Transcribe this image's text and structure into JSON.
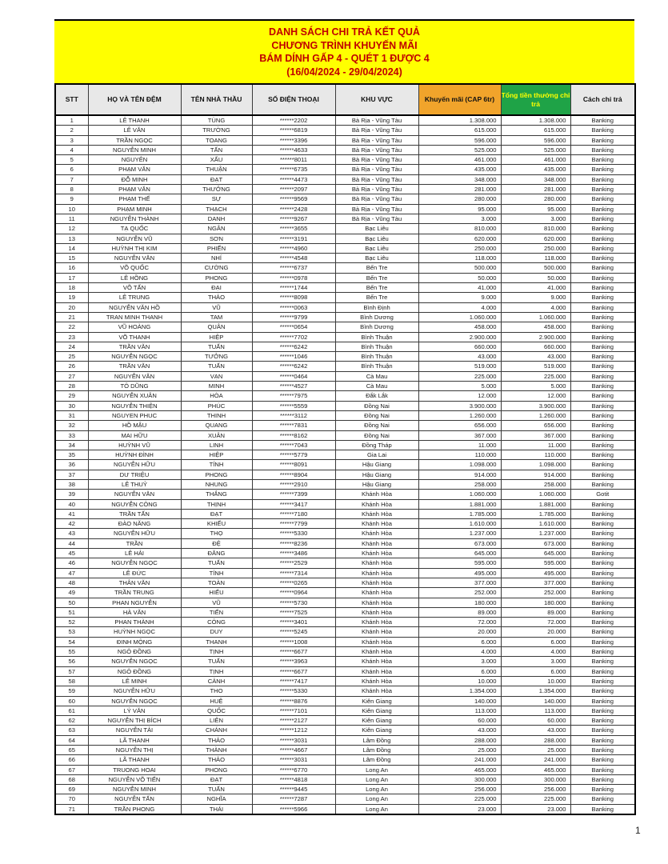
{
  "title": {
    "lines": [
      "DANH SÁCH CHI TRẢ KẾT QUẢ",
      "CHƯƠNG TRÌNH KHUYẾN MÃI",
      "BÁM DÍNH GẤP 4 - QUÉT 1 ĐƯỢC 4",
      "(16/04/2024 - 29/04/2024)"
    ]
  },
  "colors": {
    "banner_bg": "#FFFF00",
    "title_text": "#C00000",
    "header_gray": "#E8E8E8",
    "promo_header_bg": "#F1A42B",
    "total_header_bg": "#1FA347",
    "total_header_text": "#FFFF00"
  },
  "table": {
    "headers": [
      {
        "label": "STT"
      },
      {
        "label": "HỌ VÀ TÊN ĐỆM"
      },
      {
        "label": "TÊN NHÀ THẦU"
      },
      {
        "label": "SỐ ĐIỆN THOẠI"
      },
      {
        "label": "KHU VỰC"
      },
      {
        "label": "Khuyến mãi (CAP 6tr)"
      },
      {
        "label": "Tổng tiền thưởng chi trả"
      },
      {
        "label": "Cách chi trả"
      }
    ],
    "rows": [
      [
        "1",
        "LÊ THANH",
        "TÙNG",
        "******2202",
        "Bà Rịa - Vũng Tàu",
        "1.308.000",
        "1.308.000",
        "Banking"
      ],
      [
        "2",
        "LÊ VĂN",
        "TRƯỜNG",
        "******6819",
        "Bà Rịa - Vũng Tàu",
        "615.000",
        "615.000",
        "Banking"
      ],
      [
        "3",
        "TRẦN NGỌC",
        "TOANG",
        "******3396",
        "Bà Rịa - Vũng Tàu",
        "596.000",
        "596.000",
        "Banking"
      ],
      [
        "4",
        "NGUYỄN MINH",
        "TẤN",
        "******4633",
        "Bà Rịa - Vũng Tàu",
        "525.000",
        "525.000",
        "Banking"
      ],
      [
        "5",
        "NGUYÊN",
        "XẤU",
        "******8011",
        "Bà Rịa - Vũng Tàu",
        "461.000",
        "461.000",
        "Banking"
      ],
      [
        "6",
        "PHẠM VĂN",
        "THUẬN",
        "******6735",
        "Bà Rịa - Vũng Tàu",
        "435.000",
        "435.000",
        "Banking"
      ],
      [
        "7",
        "ĐỖ MINH",
        "ĐẠT",
        "******4473",
        "Bà Rịa - Vũng Tàu",
        "348.000",
        "348.000",
        "Banking"
      ],
      [
        "8",
        "PHẠM VĂN",
        "THƯỞNG",
        "******2097",
        "Bà Rịa - Vũng Tàu",
        "281.000",
        "281.000",
        "Banking"
      ],
      [
        "9",
        "PHẠM THẾ",
        "SỰ",
        "******9569",
        "Bà Rịa - Vũng Tàu",
        "280.000",
        "280.000",
        "Banking"
      ],
      [
        "10",
        "PHẠM MINH",
        "THẠCH",
        "******2428",
        "Bà Rịa - Vũng Tàu",
        "95.000",
        "95.000",
        "Banking"
      ],
      [
        "11",
        "NGUYỄN THÀNH",
        "DANH",
        "******9267",
        "Bà Rịa - Vũng Tàu",
        "3.000",
        "3.000",
        "Banking"
      ],
      [
        "12",
        "TẠ QUỐC",
        "NGÂN",
        "******3655",
        "Bạc Liêu",
        "810.000",
        "810.000",
        "Banking"
      ],
      [
        "13",
        "NGUYỄN VŨ",
        "SƠN",
        "******3191",
        "Bạc Liêu",
        "620.000",
        "620.000",
        "Banking"
      ],
      [
        "14",
        "HUỲNH THỊ KIM",
        "PHIẾN",
        "******4960",
        "Bạc Liêu",
        "250.000",
        "250.000",
        "Banking"
      ],
      [
        "15",
        "NGUYỄN VĂN",
        "NHÍ",
        "******4548",
        "Bạc Liêu",
        "118.000",
        "118.000",
        "Banking"
      ],
      [
        "16",
        "VÕ QUỐC",
        "CƯỜNG",
        "******6737",
        "Bến Tre",
        "500.000",
        "500.000",
        "Banking"
      ],
      [
        "17",
        "LÊ HỒNG",
        "PHONG",
        "******0978",
        "Bến Tre",
        "50.000",
        "50.000",
        "Banking"
      ],
      [
        "18",
        "VÕ TẤN",
        "ĐẠI",
        "******1744",
        "Bến Tre",
        "41.000",
        "41.000",
        "Banking"
      ],
      [
        "19",
        "LÊ TRUNG",
        "THẢO",
        "******8098",
        "Bến Tre",
        "9.000",
        "9.000",
        "Banking"
      ],
      [
        "20",
        "NGUYỄN VĂN HỒ",
        "VŨ",
        "******0063",
        "Bình Định",
        "4.000",
        "4.000",
        "Banking"
      ],
      [
        "21",
        "TRAN MINH THANH",
        "TAM",
        "******9799",
        "Bình Dương",
        "1.060.000",
        "1.060.000",
        "Banking"
      ],
      [
        "22",
        "VŨ HOÀNG",
        "QUÂN",
        "******0654",
        "Bình Dương",
        "458.000",
        "458.000",
        "Banking"
      ],
      [
        "23",
        "VÕ THANH",
        "HIỆP",
        "******7702",
        "Bình Thuận",
        "2.900.000",
        "2.900.000",
        "Banking"
      ],
      [
        "24",
        "TRẦN VĂN",
        "TUẤN",
        "******6242",
        "Bình Thuận",
        "660.000",
        "660.000",
        "Banking"
      ],
      [
        "25",
        "NGUYỄN NGỌC",
        "TƯỞNG",
        "******1046",
        "Bình Thuận",
        "43.000",
        "43.000",
        "Banking"
      ],
      [
        "26",
        "TRẦN VĂN",
        "TUẤN",
        "******6242",
        "Bình Thuận",
        "519.000",
        "519.000",
        "Banking"
      ],
      [
        "27",
        "NGUYỄN VĂN",
        "VẠN",
        "******0464",
        "Cà Mau",
        "225.000",
        "225.000",
        "Banking"
      ],
      [
        "28",
        "TÔ DŨNG",
        "MINH",
        "******4527",
        "Cà Mau",
        "5.000",
        "5.000",
        "Banking"
      ],
      [
        "29",
        "NGUYỄN XUÂN",
        "HÒA",
        "******7975",
        "Đắk Lắk",
        "12.000",
        "12.000",
        "Banking"
      ],
      [
        "30",
        "NGUYỄN THIỆN",
        "PHÚC",
        "******5559",
        "Đồng Nai",
        "3.900.000",
        "3.900.000",
        "Banking"
      ],
      [
        "31",
        "NGUYEN PHUC",
        "THINH",
        "******3112",
        "Đồng Nai",
        "1.260.000",
        "1.260.000",
        "Banking"
      ],
      [
        "32",
        "HỒ MẬU",
        "QUANG",
        "******7831",
        "Đồng Nai",
        "656.000",
        "656.000",
        "Banking"
      ],
      [
        "33",
        "MAI HỮU",
        "XUÂN",
        "******8162",
        "Đồng Nai",
        "367.000",
        "367.000",
        "Banking"
      ],
      [
        "34",
        "HUỲNH VŨ",
        "LINH",
        "******7043",
        "Đồng Tháp",
        "11.000",
        "11.000",
        "Banking"
      ],
      [
        "35",
        "HUỲNH ĐÌNH",
        "HIỆP",
        "******5779",
        "Gia Lai",
        "110.000",
        "110.000",
        "Banking"
      ],
      [
        "36",
        "NGUYỄN HỮU",
        "TÍNH",
        "******8091",
        "Hậu Giang",
        "1.098.000",
        "1.098.000",
        "Banking"
      ],
      [
        "37",
        "DƯ TRIỆU",
        "PHONG",
        "******8904",
        "Hậu Giang",
        "914.000",
        "914.000",
        "Banking"
      ],
      [
        "38",
        "LÊ THUỶ",
        "NHUNG",
        "******2910",
        "Hậu Giang",
        "258.000",
        "258.000",
        "Banking"
      ],
      [
        "39",
        "NGUYỄN VĂN",
        "THẮNG",
        "******7399",
        "Khánh Hòa",
        "1.060.000",
        "1.060.000",
        "Gotit"
      ],
      [
        "40",
        "NGUYỄN CÔNG",
        "THỊNH",
        "******3417",
        "Khánh Hòa",
        "1.881.000",
        "1.881.000",
        "Banking"
      ],
      [
        "41",
        "TRẦN TẤN",
        "ĐẠT",
        "******7180",
        "Khánh Hòa",
        "1.785.000",
        "1.785.000",
        "Banking"
      ],
      [
        "42",
        "ĐÀO NĂNG",
        "KHIẾU",
        "******7799",
        "Khánh Hòa",
        "1.610.000",
        "1.610.000",
        "Banking"
      ],
      [
        "43",
        "NGUYỄN HỮU",
        "THỌ",
        "******5330",
        "Khánh Hòa",
        "1.237.000",
        "1.237.000",
        "Banking"
      ],
      [
        "44",
        "TRẦN",
        "ĐỆ",
        "******8236",
        "Khánh Hòa",
        "673.000",
        "673.000",
        "Banking"
      ],
      [
        "45",
        "LÊ HẢI",
        "ĐĂNG",
        "******3486",
        "Khánh Hòa",
        "645.000",
        "645.000",
        "Banking"
      ],
      [
        "46",
        "NGUYỄN NGỌC",
        "TUẤN",
        "******2529",
        "Khánh Hòa",
        "595.000",
        "595.000",
        "Banking"
      ],
      [
        "47",
        "LÊ ĐỨC",
        "TÍNH",
        "******7314",
        "Khánh Hòa",
        "495.000",
        "495.000",
        "Banking"
      ],
      [
        "48",
        "THÂN VĂN",
        "TOÀN",
        "******0265",
        "Khánh Hòa",
        "377.000",
        "377.000",
        "Banking"
      ],
      [
        "49",
        "TRẦN TRUNG",
        "HIẾU",
        "******0964",
        "Khánh Hòa",
        "252.000",
        "252.000",
        "Banking"
      ],
      [
        "50",
        "PHAN NGUYỄN",
        "VŨ",
        "******5730",
        "Khánh Hòa",
        "180.000",
        "180.000",
        "Banking"
      ],
      [
        "51",
        "HÀ VĂN",
        "TIẾN",
        "******7525",
        "Khánh Hòa",
        "89.000",
        "89.000",
        "Banking"
      ],
      [
        "52",
        "PHAN THÀNH",
        "CÔNG",
        "******3401",
        "Khánh Hòa",
        "72.000",
        "72.000",
        "Banking"
      ],
      [
        "53",
        "HUỲNH NGỌC",
        "DUY",
        "******5245",
        "Khánh Hòa",
        "20.000",
        "20.000",
        "Banking"
      ],
      [
        "54",
        "ĐINH MỘNG",
        "THANH",
        "******1008",
        "Khánh Hòa",
        "6.000",
        "6.000",
        "Banking"
      ],
      [
        "55",
        "NGÔ ĐỒNG",
        "TỊNH",
        "******6677",
        "Khánh Hòa",
        "4.000",
        "4.000",
        "Banking"
      ],
      [
        "56",
        "NGUYỄN NGỌC",
        "TUẤN",
        "******3963",
        "Khánh Hòa",
        "3.000",
        "3.000",
        "Banking"
      ],
      [
        "57",
        "NGÔ ĐỒNG",
        "TỊNH",
        "******6677",
        "Khánh Hòa",
        "6.000",
        "6.000",
        "Banking"
      ],
      [
        "58",
        "LÊ MINH",
        "CẢNH",
        "******7417",
        "Khánh Hòa",
        "10.000",
        "10.000",
        "Banking"
      ],
      [
        "59",
        "NGUYỄN HỮU",
        "THO",
        "******5330",
        "Khánh Hòa",
        "1.354.000",
        "1.354.000",
        "Banking"
      ],
      [
        "60",
        "NGUYỄN NGỌC",
        "HUỆ",
        "******8876",
        "Kiên Giang",
        "140.000",
        "140.000",
        "Banking"
      ],
      [
        "61",
        "LÝ VĂN",
        "QUỐC",
        "******7101",
        "Kiên Giang",
        "113.000",
        "113.000",
        "Banking"
      ],
      [
        "62",
        "NGUYỄN THỊ BÍCH",
        "LIÊN",
        "******2127",
        "Kiên Giang",
        "60.000",
        "60.000",
        "Banking"
      ],
      [
        "63",
        "NGUYỄN TẢI",
        "CHÁNH",
        "******1212",
        "Kiên Giang",
        "43.000",
        "43.000",
        "Banking"
      ],
      [
        "64",
        "LÃ THANH",
        "THẢO",
        "******3031",
        "Lâm Đồng",
        "288.000",
        "288.000",
        "Banking"
      ],
      [
        "65",
        "NGUYỄN THỊ",
        "THÀNH",
        "******4667",
        "Lâm Đồng",
        "25.000",
        "25.000",
        "Banking"
      ],
      [
        "66",
        "LÃ THANH",
        "THẢO",
        "******3031",
        "Lâm Đồng",
        "241.000",
        "241.000",
        "Banking"
      ],
      [
        "67",
        "TRUONG HOAI",
        "PHONG",
        "******6770",
        "Long An",
        "465.000",
        "465.000",
        "Banking"
      ],
      [
        "68",
        "NGUYỄN VÕ TIẾN",
        "ĐẠT",
        "******4818",
        "Long An",
        "300.000",
        "300.000",
        "Banking"
      ],
      [
        "69",
        "NGUYỄN MINH",
        "TUẤN",
        "******9445",
        "Long An",
        "256.000",
        "256.000",
        "Banking"
      ],
      [
        "70",
        "NGUYỄN TẤN",
        "NGHĨA",
        "******7287",
        "Long An",
        "225.000",
        "225.000",
        "Banking"
      ],
      [
        "71",
        "TRẦN PHONG",
        "THÁI",
        "******5966",
        "Long An",
        "23.000",
        "23.000",
        "Banking"
      ]
    ]
  },
  "page": {
    "number": "1"
  }
}
